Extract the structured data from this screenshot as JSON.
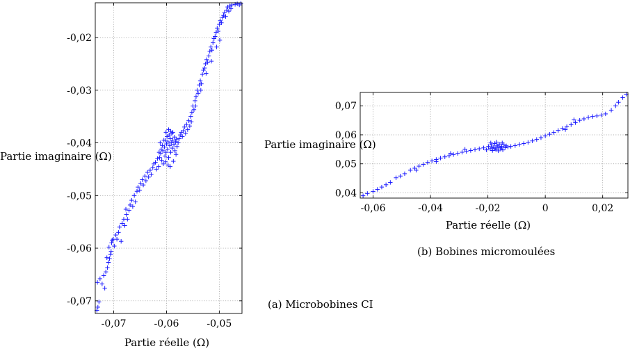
{
  "chart_data": [
    {
      "type": "scatter",
      "id": "a",
      "caption": "(a) Microbobines CI",
      "xlabel": "Partie réelle (Ω)",
      "ylabel": "Partie imaginaire (Ω)",
      "xlim": [
        -0.0735,
        -0.0457
      ],
      "ylim": [
        -0.0724,
        -0.0134
      ],
      "xticks": [
        -0.07,
        -0.06,
        -0.05
      ],
      "xtick_labels": [
        "-0,07",
        "-0,06",
        "-0,05"
      ],
      "yticks": [
        -0.07,
        -0.06,
        -0.05,
        -0.04,
        -0.03,
        -0.02
      ],
      "ytick_labels": [
        "-0,07",
        "-0,06",
        "-0,05",
        "-0,04",
        "-0,03",
        "-0,02"
      ],
      "grid": true,
      "marker": "+",
      "color": "#1a1aff",
      "points": [
        [
          -0.0732,
          -0.0718
        ],
        [
          -0.073,
          -0.0712
        ],
        [
          -0.0728,
          -0.0702
        ],
        [
          -0.0731,
          -0.0665
        ],
        [
          -0.0726,
          -0.0658
        ],
        [
          -0.0722,
          -0.0668
        ],
        [
          -0.0719,
          -0.0652
        ],
        [
          -0.0717,
          -0.0676
        ],
        [
          -0.0715,
          -0.0645
        ],
        [
          -0.0712,
          -0.0637
        ],
        [
          -0.071,
          -0.0627
        ],
        [
          -0.0713,
          -0.0618
        ],
        [
          -0.0708,
          -0.062
        ],
        [
          -0.0706,
          -0.0612
        ],
        [
          -0.0709,
          -0.0598
        ],
        [
          -0.0704,
          -0.059
        ],
        [
          -0.0701,
          -0.0583
        ],
        [
          -0.0699,
          -0.0596
        ],
        [
          -0.0705,
          -0.0606
        ],
        [
          -0.0696,
          -0.0575
        ],
        [
          -0.0694,
          -0.0583
        ],
        [
          -0.0691,
          -0.057
        ],
        [
          -0.0689,
          -0.056
        ],
        [
          -0.0703,
          -0.0585
        ],
        [
          -0.0686,
          -0.0587
        ],
        [
          -0.0684,
          -0.0553
        ],
        [
          -0.0681,
          -0.0545
        ],
        [
          -0.0679,
          -0.0557
        ],
        [
          -0.0676,
          -0.0536
        ],
        [
          -0.0674,
          -0.0545
        ],
        [
          -0.0677,
          -0.0526
        ],
        [
          -0.0671,
          -0.0528
        ],
        [
          -0.0669,
          -0.0518
        ],
        [
          -0.0666,
          -0.0509
        ],
        [
          -0.0664,
          -0.0521
        ],
        [
          -0.0661,
          -0.05
        ],
        [
          -0.0659,
          -0.0512
        ],
        [
          -0.0656,
          -0.0492
        ],
        [
          -0.0654,
          -0.0484
        ],
        [
          -0.0651,
          -0.049
        ],
        [
          -0.0649,
          -0.0477
        ],
        [
          -0.0646,
          -0.047
        ],
        [
          -0.0644,
          -0.048
        ],
        [
          -0.0641,
          -0.0463
        ],
        [
          -0.0639,
          -0.0472
        ],
        [
          -0.0636,
          -0.0456
        ],
        [
          -0.0634,
          -0.0465
        ],
        [
          -0.0631,
          -0.0452
        ],
        [
          -0.0629,
          -0.046
        ],
        [
          -0.0626,
          -0.0447
        ],
        [
          -0.0624,
          -0.044
        ],
        [
          -0.0621,
          -0.0437
        ],
        [
          -0.0619,
          -0.045
        ],
        [
          -0.0617,
          -0.043
        ],
        [
          -0.0615,
          -0.0445
        ],
        [
          -0.0613,
          -0.0428
        ],
        [
          -0.0611,
          -0.042
        ],
        [
          -0.0609,
          -0.0433
        ],
        [
          -0.0607,
          -0.0415
        ],
        [
          -0.0606,
          -0.044
        ],
        [
          -0.0604,
          -0.0408
        ],
        [
          -0.0603,
          -0.0425
        ],
        [
          -0.0602,
          -0.0395
        ],
        [
          -0.0601,
          -0.0418
        ],
        [
          -0.06,
          -0.0402
        ],
        [
          -0.0599,
          -0.0388
        ],
        [
          -0.0598,
          -0.0412
        ],
        [
          -0.0597,
          -0.0398
        ],
        [
          -0.0596,
          -0.0428
        ],
        [
          -0.0595,
          -0.0385
        ],
        [
          -0.0594,
          -0.0405
        ],
        [
          -0.0593,
          -0.0392
        ],
        [
          -0.0592,
          -0.0418
        ],
        [
          -0.0591,
          -0.04
        ],
        [
          -0.059,
          -0.0382
        ],
        [
          -0.0589,
          -0.041
        ],
        [
          -0.0588,
          -0.0395
        ],
        [
          -0.0587,
          -0.0435
        ],
        [
          -0.0586,
          -0.0403
        ],
        [
          -0.0585,
          -0.0389
        ],
        [
          -0.0584,
          -0.0415
        ],
        [
          -0.0583,
          -0.0398
        ],
        [
          -0.0582,
          -0.0422
        ],
        [
          -0.0581,
          -0.0393
        ],
        [
          -0.058,
          -0.0407
        ],
        [
          -0.0605,
          -0.0395
        ],
        [
          -0.0608,
          -0.0405
        ],
        [
          -0.061,
          -0.0412
        ],
        [
          -0.0612,
          -0.04
        ],
        [
          -0.0614,
          -0.0418
        ],
        [
          -0.0596,
          -0.0375
        ],
        [
          -0.0592,
          -0.0378
        ],
        [
          -0.0588,
          -0.038
        ],
        [
          -0.0601,
          -0.038
        ],
        [
          -0.0597,
          -0.0442
        ],
        [
          -0.0602,
          -0.0436
        ],
        [
          -0.0593,
          -0.0445
        ],
        [
          -0.0578,
          -0.04
        ],
        [
          -0.0576,
          -0.0392
        ],
        [
          -0.0574,
          -0.0385
        ],
        [
          -0.0572,
          -0.038
        ],
        [
          -0.057,
          -0.0388
        ],
        [
          -0.0568,
          -0.0377
        ],
        [
          -0.0566,
          -0.037
        ],
        [
          -0.0564,
          -0.0382
        ],
        [
          -0.0562,
          -0.0365
        ],
        [
          -0.056,
          -0.0375
        ],
        [
          -0.0558,
          -0.0358
        ],
        [
          -0.0556,
          -0.0368
        ],
        [
          -0.0554,
          -0.035
        ],
        [
          -0.0552,
          -0.0342
        ],
        [
          -0.055,
          -0.033
        ],
        [
          -0.0548,
          -0.0337
        ],
        [
          -0.0546,
          -0.032
        ],
        [
          -0.0544,
          -0.0312
        ],
        [
          -0.0542,
          -0.03
        ],
        [
          -0.054,
          -0.0306
        ],
        [
          -0.0538,
          -0.029
        ],
        [
          -0.0536,
          -0.0282
        ],
        [
          -0.0534,
          -0.0288
        ],
        [
          -0.0532,
          -0.027
        ],
        [
          -0.053,
          -0.0262
        ],
        [
          -0.0528,
          -0.0258
        ],
        [
          -0.0526,
          -0.025
        ],
        [
          -0.0524,
          -0.0242
        ],
        [
          -0.0522,
          -0.0247
        ],
        [
          -0.052,
          -0.0235
        ],
        [
          -0.0518,
          -0.0226
        ],
        [
          -0.0516,
          -0.0218
        ],
        [
          -0.0514,
          -0.0224
        ],
        [
          -0.0512,
          -0.021
        ],
        [
          -0.051,
          -0.0202
        ],
        [
          -0.0508,
          -0.0198
        ],
        [
          -0.0506,
          -0.019
        ],
        [
          -0.0504,
          -0.0182
        ],
        [
          -0.0502,
          -0.0188
        ],
        [
          -0.05,
          -0.0175
        ],
        [
          -0.0498,
          -0.0168
        ],
        [
          -0.0496,
          -0.0172
        ],
        [
          -0.0494,
          -0.0162
        ],
        [
          -0.0492,
          -0.0158
        ],
        [
          -0.049,
          -0.0152
        ],
        [
          -0.0488,
          -0.016
        ],
        [
          -0.0486,
          -0.0148
        ],
        [
          -0.0484,
          -0.0142
        ],
        [
          -0.0482,
          -0.015
        ],
        [
          -0.048,
          -0.014
        ],
        [
          -0.0478,
          -0.0145
        ],
        [
          -0.0476,
          -0.0138
        ],
        [
          -0.047,
          -0.0137
        ],
        [
          -0.0466,
          -0.0136
        ],
        [
          -0.0462,
          -0.0138
        ],
        [
          -0.0459,
          -0.0135
        ],
        [
          -0.0499,
          -0.0205
        ],
        [
          -0.0505,
          -0.0218
        ],
        [
          -0.0515,
          -0.0245
        ],
        [
          -0.0525,
          -0.0268
        ],
        [
          -0.0535,
          -0.03
        ],
        [
          -0.0545,
          -0.033
        ],
        [
          -0.0553,
          -0.036
        ]
      ]
    },
    {
      "type": "scatter",
      "id": "b",
      "caption": "(b) Bobines micromoulées",
      "xlabel": "Partie réelle (Ω)",
      "ylabel": "Partie imaginaire (Ω)",
      "xlim": [
        -0.0645,
        0.0288
      ],
      "ylim": [
        0.0382,
        0.0746
      ],
      "xticks": [
        -0.06,
        -0.04,
        -0.02,
        0,
        0.02
      ],
      "xtick_labels": [
        "-0,06",
        "-0,04",
        "-0,02",
        "0",
        "0,02"
      ],
      "yticks": [
        0.04,
        0.05,
        0.06,
        0.07
      ],
      "ytick_labels": [
        "0,04",
        "0,05",
        "0,06",
        "0,07"
      ],
      "grid": true,
      "marker": "+",
      "color": "#1a1aff",
      "points": [
        [
          -0.0635,
          0.039
        ],
        [
          -0.062,
          0.0398
        ],
        [
          -0.06,
          0.0405
        ],
        [
          -0.0585,
          0.0412
        ],
        [
          -0.057,
          0.042
        ],
        [
          -0.0555,
          0.0428
        ],
        [
          -0.054,
          0.0436
        ],
        [
          -0.052,
          0.0452
        ],
        [
          -0.0505,
          0.0458
        ],
        [
          -0.049,
          0.0466
        ],
        [
          -0.047,
          0.0478
        ],
        [
          -0.0455,
          0.0485
        ],
        [
          -0.044,
          0.0492
        ],
        [
          -0.0425,
          0.0498
        ],
        [
          -0.041,
          0.0505
        ],
        [
          -0.0395,
          0.051
        ],
        [
          -0.038,
          0.0515
        ],
        [
          -0.0365,
          0.052
        ],
        [
          -0.035,
          0.0524
        ],
        [
          -0.0335,
          0.0528
        ],
        [
          -0.032,
          0.0532
        ],
        [
          -0.0305,
          0.0536
        ],
        [
          -0.029,
          0.054
        ],
        [
          -0.0275,
          0.0543
        ],
        [
          -0.026,
          0.0546
        ],
        [
          -0.0245,
          0.0549
        ],
        [
          -0.023,
          0.0552
        ],
        [
          -0.0215,
          0.0555
        ],
        [
          -0.0205,
          0.0548
        ],
        [
          -0.0198,
          0.056
        ],
        [
          -0.0192,
          0.0552
        ],
        [
          -0.0188,
          0.0565
        ],
        [
          -0.0184,
          0.0546
        ],
        [
          -0.018,
          0.0558
        ],
        [
          -0.0176,
          0.057
        ],
        [
          -0.0172,
          0.055
        ],
        [
          -0.0168,
          0.0562
        ],
        [
          -0.0164,
          0.0545
        ],
        [
          -0.016,
          0.0568
        ],
        [
          -0.0156,
          0.0555
        ],
        [
          -0.0152,
          0.056
        ],
        [
          -0.0148,
          0.0548
        ],
        [
          -0.0144,
          0.0566
        ],
        [
          -0.014,
          0.0556
        ],
        [
          -0.0136,
          0.0562
        ],
        [
          -0.0185,
          0.0555
        ],
        [
          -0.0175,
          0.0552
        ],
        [
          -0.0165,
          0.0558
        ],
        [
          -0.0155,
          0.0551
        ],
        [
          -0.019,
          0.0572
        ],
        [
          -0.017,
          0.0575
        ],
        [
          -0.015,
          0.0572
        ],
        [
          -0.013,
          0.0558
        ],
        [
          -0.012,
          0.056
        ],
        [
          -0.0105,
          0.0563
        ],
        [
          -0.009,
          0.0567
        ],
        [
          -0.0075,
          0.057
        ],
        [
          -0.006,
          0.0574
        ],
        [
          -0.0045,
          0.0579
        ],
        [
          -0.003,
          0.0584
        ],
        [
          -0.0015,
          0.059
        ],
        [
          0.0,
          0.0596
        ],
        [
          0.0015,
          0.0602
        ],
        [
          0.003,
          0.0608
        ],
        [
          0.0045,
          0.0615
        ],
        [
          0.006,
          0.0622
        ],
        [
          0.0075,
          0.0628
        ],
        [
          0.009,
          0.0635
        ],
        [
          0.0105,
          0.0642
        ],
        [
          0.012,
          0.065
        ],
        [
          0.0135,
          0.0655
        ],
        [
          0.015,
          0.066
        ],
        [
          0.0165,
          0.0663
        ],
        [
          0.018,
          0.0665
        ],
        [
          0.0195,
          0.0668
        ],
        [
          0.021,
          0.0672
        ],
        [
          0.023,
          0.0685
        ],
        [
          0.0245,
          0.07
        ],
        [
          0.0255,
          0.0712
        ],
        [
          0.027,
          0.0728
        ],
        [
          0.0282,
          0.074
        ],
        [
          -0.045,
          0.0478
        ],
        [
          -0.038,
          0.0508
        ],
        [
          -0.033,
          0.0536
        ],
        [
          -0.028,
          0.055
        ],
        [
          0.007,
          0.0618
        ],
        [
          0.01,
          0.0652
        ]
      ]
    }
  ]
}
